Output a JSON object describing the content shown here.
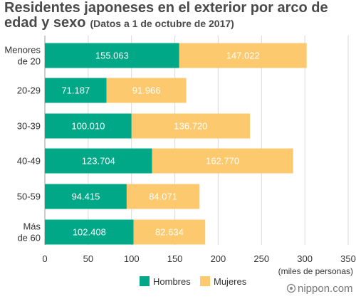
{
  "chart_data": {
    "type": "bar",
    "orientation": "horizontal",
    "stacked": true,
    "title_line1": "Residentes japoneses en el exterior por arco de",
    "title_line2": "edad y sexo",
    "subtitle": "(Datos a 1 de octubre de 2017)",
    "xlabel": "(miles de personas)",
    "ylabel": "",
    "xlim": [
      0,
      350
    ],
    "x_ticks": [
      "0",
      "50",
      "100",
      "150",
      "200",
      "250",
      "300",
      "350"
    ],
    "x_tick_values": [
      0,
      50,
      100,
      150,
      200,
      250,
      300,
      350
    ],
    "grid": true,
    "legend_position": "bottom",
    "categories": [
      [
        "Menores",
        "de 20"
      ],
      [
        "20-29"
      ],
      [
        "30-39"
      ],
      [
        "40-49"
      ],
      [
        "50-59"
      ],
      [
        "Más",
        "de 60"
      ]
    ],
    "series": [
      {
        "name": "Hombres",
        "color": "#00a887",
        "values": [
          155.063,
          71.187,
          100.01,
          123.704,
          94.415,
          102.408
        ],
        "labels": [
          "155.063",
          "71.187",
          "100.010",
          "123.704",
          "94.415",
          "102.408"
        ]
      },
      {
        "name": "Mujeres",
        "color": "#fcc96f",
        "values": [
          147.022,
          91.966,
          136.72,
          162.77,
          84.071,
          82.634
        ],
        "labels": [
          "147.022",
          "91.966",
          "136.720",
          "162.770",
          "84.071",
          "82.634"
        ]
      }
    ]
  },
  "brand": {
    "name": "nippon.com"
  }
}
